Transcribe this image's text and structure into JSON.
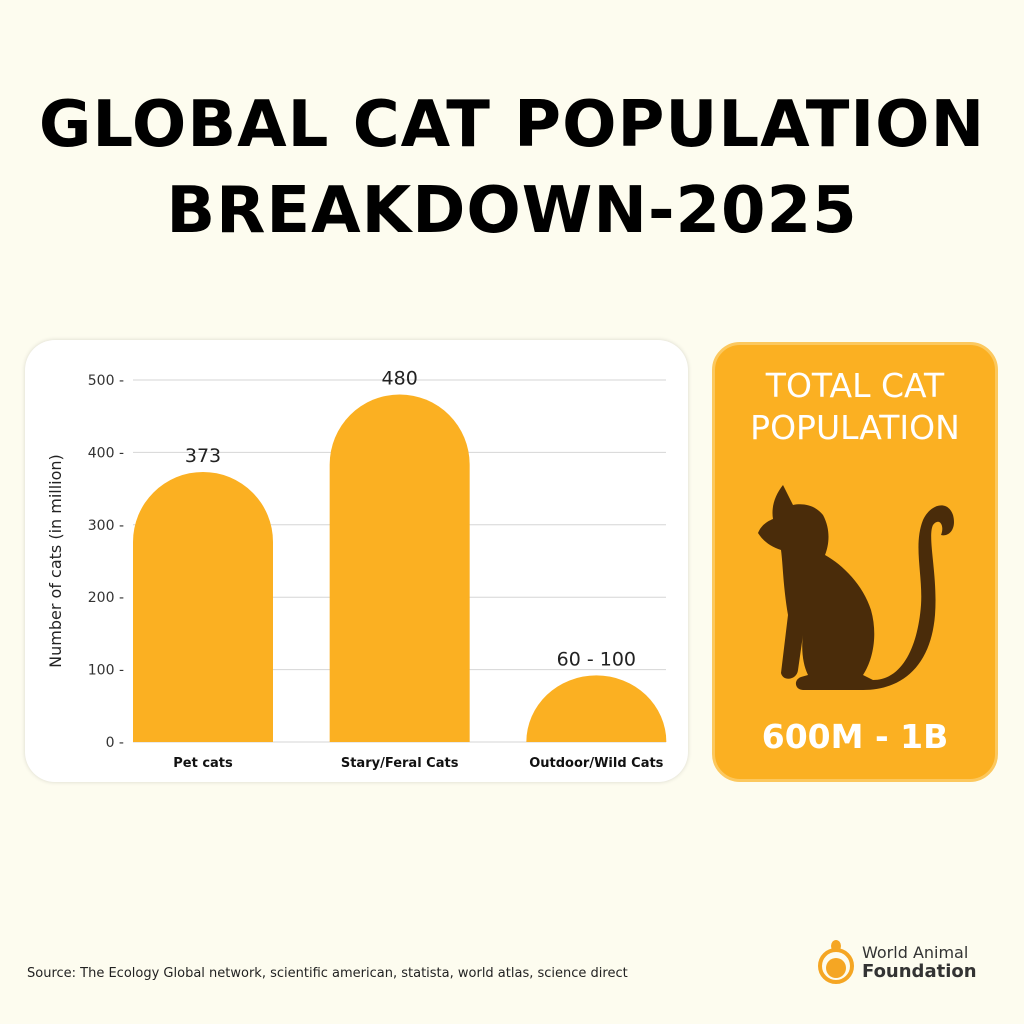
{
  "title_line1": "GLOBAL CAT POPULATION",
  "title_line2": "BREAKDOWN-2025",
  "chart_data": {
    "type": "bar",
    "categories": [
      "Pet cats",
      "Stary/Feral Cats",
      "Outdoor/Wild Cats"
    ],
    "values": [
      373,
      480,
      [
        60,
        100
      ]
    ],
    "data_labels": [
      "373",
      "480",
      "60 - 100"
    ],
    "ylabel": "Number of cats (in million)",
    "xlabel": "",
    "ylim": [
      0,
      500
    ],
    "yticks": [
      0,
      100,
      200,
      300,
      400,
      500
    ],
    "grid": true,
    "bar_color": "#fbb022"
  },
  "total": {
    "title_line1": "TOTAL CAT",
    "title_line2": "POPULATION",
    "value": "600M - 1B",
    "icon": "cat-silhouette-icon",
    "bg_color": "#fbb022",
    "icon_color": "#4a2c0a"
  },
  "source": "Source: The Ecology Global network, scientific american, statista, world atlas, science direct",
  "logo": {
    "line1": "World Animal",
    "line2": "Foundation"
  }
}
